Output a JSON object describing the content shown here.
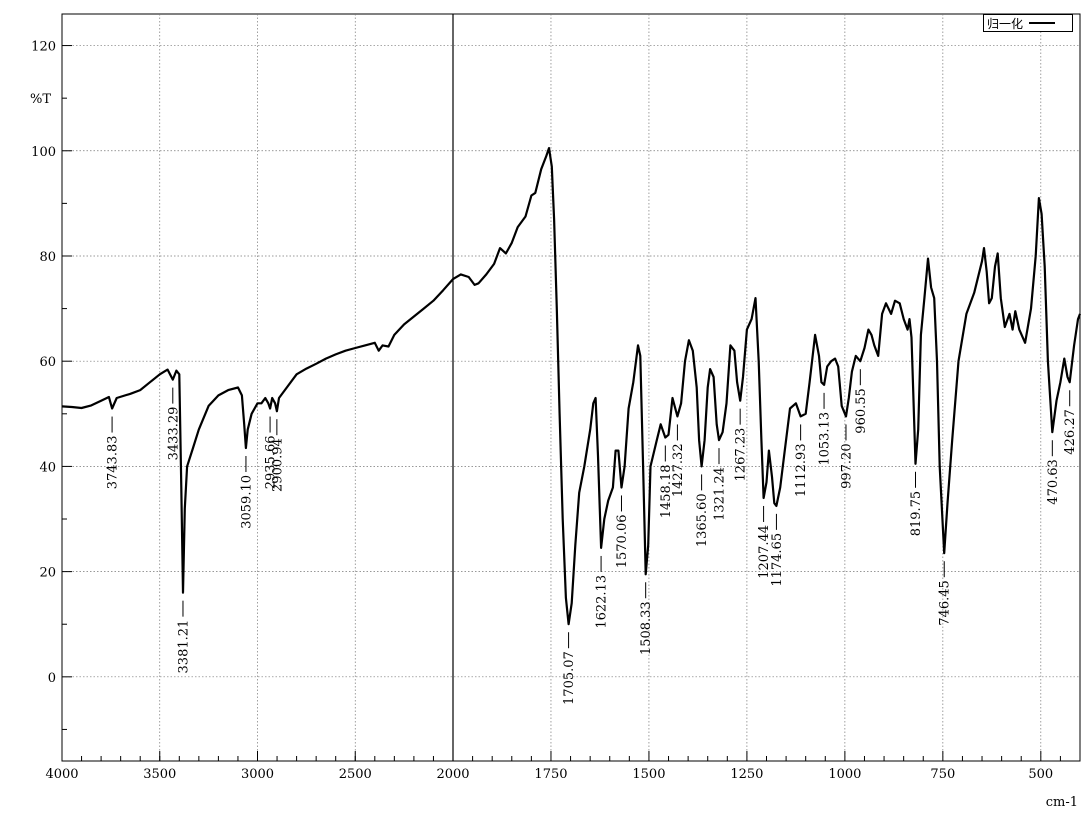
{
  "legend": {
    "label": "归一化"
  },
  "chart_data": {
    "type": "line",
    "title": "",
    "xlabel": "cm-1",
    "ylabel": "%T",
    "xlim": [
      4000,
      400
    ],
    "ylim": [
      -16,
      126
    ],
    "x_ticks": [
      4000,
      3500,
      3000,
      2500,
      2000,
      1750,
      1500,
      1250,
      1000,
      750,
      500
    ],
    "y_ticks": [
      0,
      20,
      40,
      60,
      80,
      100,
      120
    ],
    "y_axis_title_position": 110,
    "axis_break_at": 2000,
    "grid": true,
    "legend_position": "top-right",
    "line_color": "#000000",
    "series": [
      {
        "name": "归一化",
        "points": [
          [
            4000,
            51.4
          ],
          [
            3950,
            51.3
          ],
          [
            3900,
            51.1
          ],
          [
            3850,
            51.6
          ],
          [
            3800,
            52.5
          ],
          [
            3760,
            53.2
          ],
          [
            3743.83,
            51.0
          ],
          [
            3720,
            53.0
          ],
          [
            3650,
            53.8
          ],
          [
            3600,
            54.5
          ],
          [
            3550,
            56.0
          ],
          [
            3500,
            57.5
          ],
          [
            3460,
            58.4
          ],
          [
            3433.29,
            56.5
          ],
          [
            3415,
            58.2
          ],
          [
            3400,
            57.5
          ],
          [
            3390,
            36.0
          ],
          [
            3381.21,
            16.0
          ],
          [
            3372,
            32.0
          ],
          [
            3360,
            40.0
          ],
          [
            3330,
            43.5
          ],
          [
            3300,
            47.0
          ],
          [
            3250,
            51.5
          ],
          [
            3200,
            53.5
          ],
          [
            3150,
            54.5
          ],
          [
            3100,
            55.0
          ],
          [
            3080,
            53.5
          ],
          [
            3068,
            48.0
          ],
          [
            3059.1,
            43.5
          ],
          [
            3050,
            47.0
          ],
          [
            3030,
            50.0
          ],
          [
            3000,
            52.0
          ],
          [
            2980,
            52.0
          ],
          [
            2960,
            53.0
          ],
          [
            2945,
            52.0
          ],
          [
            2935.66,
            51.0
          ],
          [
            2925,
            53.0
          ],
          [
            2910,
            52.0
          ],
          [
            2900.94,
            50.5
          ],
          [
            2890,
            53.0
          ],
          [
            2850,
            55.0
          ],
          [
            2800,
            57.5
          ],
          [
            2750,
            58.6
          ],
          [
            2700,
            59.5
          ],
          [
            2650,
            60.5
          ],
          [
            2600,
            61.3
          ],
          [
            2550,
            62.0
          ],
          [
            2500,
            62.5
          ],
          [
            2450,
            63.0
          ],
          [
            2400,
            63.5
          ],
          [
            2380,
            62.0
          ],
          [
            2360,
            63.0
          ],
          [
            2330,
            62.8
          ],
          [
            2300,
            65.0
          ],
          [
            2250,
            67.0
          ],
          [
            2200,
            68.5
          ],
          [
            2150,
            70.0
          ],
          [
            2100,
            71.5
          ],
          [
            2050,
            73.5
          ],
          [
            2000,
            75.6
          ],
          [
            1980,
            76.5
          ],
          [
            1960,
            76.0
          ],
          [
            1945,
            74.5
          ],
          [
            1935,
            74.8
          ],
          [
            1915,
            76.5
          ],
          [
            1895,
            78.5
          ],
          [
            1880,
            81.5
          ],
          [
            1865,
            80.5
          ],
          [
            1850,
            82.5
          ],
          [
            1835,
            85.5
          ],
          [
            1815,
            87.5
          ],
          [
            1800,
            91.5
          ],
          [
            1790,
            92.0
          ],
          [
            1775,
            96.5
          ],
          [
            1762,
            99.0
          ],
          [
            1755,
            100.5
          ],
          [
            1748,
            97.0
          ],
          [
            1742,
            87.0
          ],
          [
            1735,
            70.0
          ],
          [
            1728,
            50.0
          ],
          [
            1720,
            30.0
          ],
          [
            1712,
            15.0
          ],
          [
            1705.07,
            10.0
          ],
          [
            1697,
            14.0
          ],
          [
            1688,
            25.0
          ],
          [
            1678,
            35.0
          ],
          [
            1665,
            40.0
          ],
          [
            1650,
            47.0
          ],
          [
            1642,
            52.0
          ],
          [
            1636,
            53.0
          ],
          [
            1630,
            42.0
          ],
          [
            1622.13,
            24.5
          ],
          [
            1614,
            30.0
          ],
          [
            1604,
            33.5
          ],
          [
            1592,
            36.0
          ],
          [
            1585,
            43.0
          ],
          [
            1578,
            43.0
          ],
          [
            1570.06,
            36.0
          ],
          [
            1562,
            40.0
          ],
          [
            1552,
            51.0
          ],
          [
            1540,
            56.0
          ],
          [
            1528,
            63.0
          ],
          [
            1522,
            61.0
          ],
          [
            1515,
            40.0
          ],
          [
            1508.33,
            19.5
          ],
          [
            1502,
            25.0
          ],
          [
            1496,
            40.0
          ],
          [
            1480,
            45.0
          ],
          [
            1470,
            48.0
          ],
          [
            1458.18,
            45.5
          ],
          [
            1450,
            46.0
          ],
          [
            1440,
            53.0
          ],
          [
            1427.32,
            49.5
          ],
          [
            1418,
            52.0
          ],
          [
            1408,
            60.0
          ],
          [
            1398,
            64.0
          ],
          [
            1388,
            62.0
          ],
          [
            1378,
            55.0
          ],
          [
            1372,
            45.0
          ],
          [
            1365.6,
            40.0
          ],
          [
            1358,
            45.0
          ],
          [
            1350,
            55.0
          ],
          [
            1344,
            58.5
          ],
          [
            1335,
            57.0
          ],
          [
            1327,
            48.0
          ],
          [
            1321.24,
            45.0
          ],
          [
            1312,
            46.5
          ],
          [
            1302,
            52.0
          ],
          [
            1292,
            63.0
          ],
          [
            1282,
            62.0
          ],
          [
            1275,
            56.0
          ],
          [
            1267.23,
            52.5
          ],
          [
            1260,
            57.0
          ],
          [
            1250,
            66.0
          ],
          [
            1238,
            68.0
          ],
          [
            1228,
            72.0
          ],
          [
            1220,
            60.0
          ],
          [
            1213,
            45.0
          ],
          [
            1207.44,
            34.0
          ],
          [
            1200,
            37.0
          ],
          [
            1194,
            43.0
          ],
          [
            1186,
            38.0
          ],
          [
            1180,
            33.0
          ],
          [
            1174.65,
            32.5
          ],
          [
            1165,
            36.0
          ],
          [
            1155,
            42.0
          ],
          [
            1140,
            51.0
          ],
          [
            1125,
            52.0
          ],
          [
            1112.93,
            49.5
          ],
          [
            1100,
            50.0
          ],
          [
            1090,
            56.0
          ],
          [
            1076,
            65.0
          ],
          [
            1066,
            61.0
          ],
          [
            1060,
            56.0
          ],
          [
            1053.13,
            55.5
          ],
          [
            1045,
            59.0
          ],
          [
            1035,
            60.0
          ],
          [
            1025,
            60.5
          ],
          [
            1017,
            59.0
          ],
          [
            1008,
            51.5
          ],
          [
            997.2,
            49.5
          ],
          [
            990,
            53.0
          ],
          [
            982,
            58.0
          ],
          [
            972,
            61.0
          ],
          [
            960.55,
            60.0
          ],
          [
            950,
            62.5
          ],
          [
            940,
            66.0
          ],
          [
            932,
            65.0
          ],
          [
            925,
            63.0
          ],
          [
            915,
            61.0
          ],
          [
            905,
            69.0
          ],
          [
            895,
            71.0
          ],
          [
            882,
            69.0
          ],
          [
            872,
            71.5
          ],
          [
            860,
            71.0
          ],
          [
            850,
            68.0
          ],
          [
            840,
            66.0
          ],
          [
            835,
            68.0
          ],
          [
            830,
            64.5
          ],
          [
            826,
            55.0
          ],
          [
            819.75,
            40.5
          ],
          [
            813,
            47.0
          ],
          [
            806,
            65.0
          ],
          [
            797,
            72.0
          ],
          [
            788,
            79.5
          ],
          [
            780,
            74.0
          ],
          [
            772,
            72.0
          ],
          [
            765,
            60.0
          ],
          [
            758,
            40.0
          ],
          [
            746.45,
            23.5
          ],
          [
            738,
            33.0
          ],
          [
            726,
            45.0
          ],
          [
            710,
            60.0
          ],
          [
            690,
            69.0
          ],
          [
            670,
            73.0
          ],
          [
            650,
            79.0
          ],
          [
            645,
            81.5
          ],
          [
            638,
            77.0
          ],
          [
            632,
            71.0
          ],
          [
            625,
            72.0
          ],
          [
            617,
            78.0
          ],
          [
            610,
            80.5
          ],
          [
            602,
            72.0
          ],
          [
            592,
            66.5
          ],
          [
            580,
            69.0
          ],
          [
            572,
            66.0
          ],
          [
            565,
            69.5
          ],
          [
            555,
            66.0
          ],
          [
            540,
            63.5
          ],
          [
            525,
            70.0
          ],
          [
            513,
            80.0
          ],
          [
            505,
            91.0
          ],
          [
            498,
            88.0
          ],
          [
            490,
            78.0
          ],
          [
            482,
            60.0
          ],
          [
            470.63,
            46.5
          ],
          [
            460,
            52.5
          ],
          [
            450,
            56.0
          ],
          [
            440,
            60.5
          ],
          [
            432,
            57.0
          ],
          [
            426.27,
            56.0
          ],
          [
            415,
            63.0
          ],
          [
            405,
            68.0
          ],
          [
            400,
            69.0
          ]
        ]
      }
    ],
    "peaks": [
      {
        "x": 3743.83,
        "label": "3743.83"
      },
      {
        "x": 3433.29,
        "label": "3433.29"
      },
      {
        "x": 3381.21,
        "label": "3381.21"
      },
      {
        "x": 3059.1,
        "label": "3059.10"
      },
      {
        "x": 2935.66,
        "label": "2935.66"
      },
      {
        "x": 2900.94,
        "label": "2900.94"
      },
      {
        "x": 1705.07,
        "label": "1705.07"
      },
      {
        "x": 1622.13,
        "label": "1622.13"
      },
      {
        "x": 1570.06,
        "label": "1570.06"
      },
      {
        "x": 1508.33,
        "label": "1508.33"
      },
      {
        "x": 1458.18,
        "label": "1458.18"
      },
      {
        "x": 1427.32,
        "label": "1427.32"
      },
      {
        "x": 1365.6,
        "label": "1365.60"
      },
      {
        "x": 1321.24,
        "label": "1321.24"
      },
      {
        "x": 1267.23,
        "label": "1267.23"
      },
      {
        "x": 1207.44,
        "label": "1207.44"
      },
      {
        "x": 1174.65,
        "label": "1174.65"
      },
      {
        "x": 1112.93,
        "label": "1112.93"
      },
      {
        "x": 1053.13,
        "label": "1053.13"
      },
      {
        "x": 997.2,
        "label": "997.20"
      },
      {
        "x": 960.55,
        "label": "960.55"
      },
      {
        "x": 819.75,
        "label": "819.75"
      },
      {
        "x": 746.45,
        "label": "746.45"
      },
      {
        "x": 470.63,
        "label": "470.63"
      },
      {
        "x": 426.27,
        "label": "426.27"
      }
    ]
  }
}
